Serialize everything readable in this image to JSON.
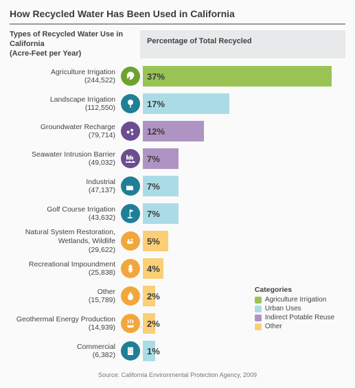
{
  "title": "How Recycled Water Has Been Used in California",
  "header_left_line1": "Types of Recycled Water Use in California",
  "header_left_line2": "(Acre-Feet per Year)",
  "header_right": "Percentage of Total Recycled",
  "source": "Source: California Environmental Protection Agency, 2009",
  "colors": {
    "agriculture": "#99c455",
    "urban_bar": "#abdce6",
    "urban_icon": "#1f7f96",
    "indirect_bar": "#af94c3",
    "indirect_icon": "#6b4e8f",
    "other_bar": "#fbcf76",
    "other_icon": "#f2a73c",
    "ag_icon": "#6ea22f"
  },
  "max_pct": 40,
  "rows": [
    {
      "label": "Agriculture Irrigation",
      "acf": "(244,522)",
      "pct": 37,
      "icon": "leaf",
      "cat": "agriculture"
    },
    {
      "label": "Landscape Irrigation",
      "acf": "(112,550)",
      "pct": 17,
      "icon": "tree",
      "cat": "urban"
    },
    {
      "label": "Groundwater Recharge",
      "acf": "(79,714)",
      "pct": 12,
      "icon": "drops",
      "cat": "indirect"
    },
    {
      "label": "Seawater Intrusion Barrier",
      "acf": "(49,032)",
      "pct": 7,
      "icon": "waves",
      "cat": "indirect"
    },
    {
      "label": "Industrial",
      "acf": "(47,137)",
      "pct": 7,
      "icon": "factory",
      "cat": "urban"
    },
    {
      "label": "Golf Course Irrigation",
      "acf": "(43,632)",
      "pct": 7,
      "icon": "flag",
      "cat": "urban"
    },
    {
      "label": "Natural System Restoration, Wetlands, Wildlife",
      "acf": "(29,622)",
      "pct": 5,
      "icon": "birds",
      "cat": "other"
    },
    {
      "label": "Recreational Impoundment",
      "acf": "(25,838)",
      "pct": 4,
      "icon": "pine",
      "cat": "other"
    },
    {
      "label": "Other",
      "acf": "(15,789)",
      "pct": 2,
      "icon": "drop",
      "cat": "other"
    },
    {
      "label": "Geothermal Energy Production",
      "acf": "(14,939)",
      "pct": 2,
      "icon": "steam",
      "cat": "other"
    },
    {
      "label": "Commercial",
      "acf": "(6,382)",
      "pct": 1,
      "icon": "building",
      "cat": "urban"
    }
  ],
  "legend": {
    "title": "Categories",
    "items": [
      {
        "label": "Agriculture Irrigation",
        "color": "#99c455"
      },
      {
        "label": "Urban Uses",
        "color": "#abdce6"
      },
      {
        "label": "Indirect Potable Reuse",
        "color": "#af94c3"
      },
      {
        "label": "Other",
        "color": "#fbcf76"
      }
    ]
  }
}
